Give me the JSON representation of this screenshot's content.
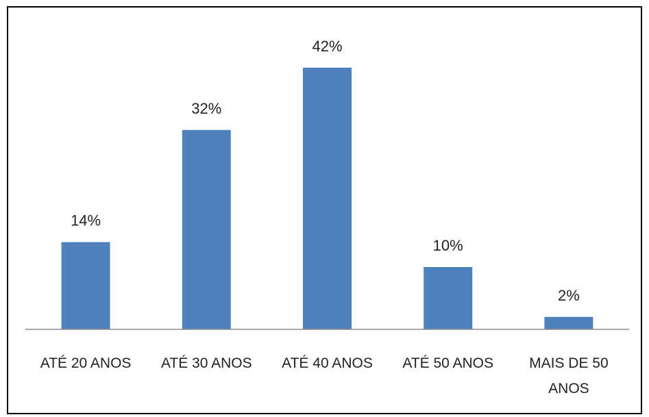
{
  "chart_data": {
    "type": "bar",
    "title": "",
    "xlabel": "",
    "ylabel": "",
    "categories": [
      [
        "ATÉ 20 ANOS"
      ],
      [
        "ATÉ 30 ANOS"
      ],
      [
        "ATÉ 40 ANOS"
      ],
      [
        "ATÉ 50 ANOS"
      ],
      [
        "MAIS DE 50",
        "ANOS"
      ]
    ],
    "values": [
      14,
      32,
      42,
      10,
      2
    ],
    "data_labels": [
      "14%",
      "32%",
      "42%",
      "10%",
      "2%"
    ],
    "unit": "%",
    "ylim": [
      0,
      45
    ],
    "grid": false,
    "legend": "none",
    "bar_color": "#4f81bd",
    "axis_color": "#8c8c8c",
    "border_color": "#000000"
  }
}
